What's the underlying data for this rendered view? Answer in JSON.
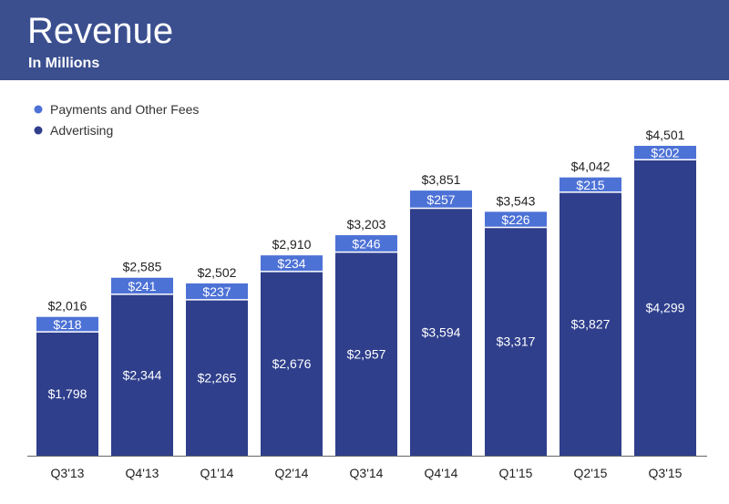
{
  "header": {
    "title": "Revenue",
    "subtitle": "In Millions"
  },
  "colors": {
    "header_bg": "#3b4f8f",
    "advertising": "#2f3f8c",
    "payments": "#4d72d6",
    "axis": "#666666"
  },
  "chart_data": {
    "type": "bar",
    "stacked": true,
    "title": "Revenue",
    "subtitle": "In Millions",
    "categories": [
      "Q3'13",
      "Q4'13",
      "Q1'14",
      "Q2'14",
      "Q3'14",
      "Q4'14",
      "Q1'15",
      "Q2'15",
      "Q3'15"
    ],
    "series": [
      {
        "name": "Advertising",
        "values": [
          1798,
          2344,
          2265,
          2676,
          2957,
          3594,
          3317,
          3827,
          4299
        ]
      },
      {
        "name": "Payments and Other Fees",
        "values": [
          218,
          241,
          237,
          234,
          246,
          257,
          226,
          215,
          202
        ]
      }
    ],
    "totals": [
      2016,
      2585,
      2502,
      2910,
      3203,
      3851,
      3543,
      4042,
      4501
    ],
    "value_labels": {
      "advertising": [
        "$1,798",
        "$2,344",
        "$2,265",
        "$2,676",
        "$2,957",
        "$3,594",
        "$3,317",
        "$3,827",
        "$4,299"
      ],
      "payments": [
        "$218",
        "$241",
        "$237",
        "$234",
        "$246",
        "$257",
        "$226",
        "$215",
        "$202"
      ],
      "totals": [
        "$2,016",
        "$2,585",
        "$2,502",
        "$2,910",
        "$3,203",
        "$3,851",
        "$3,543",
        "$4,042",
        "$4,501"
      ]
    },
    "legend": [
      "Payments and Other Fees",
      "Advertising"
    ],
    "legend_position": "top-left",
    "xlabel": "",
    "ylabel": "",
    "ylim": [
      0,
      4501
    ],
    "grid": false
  }
}
